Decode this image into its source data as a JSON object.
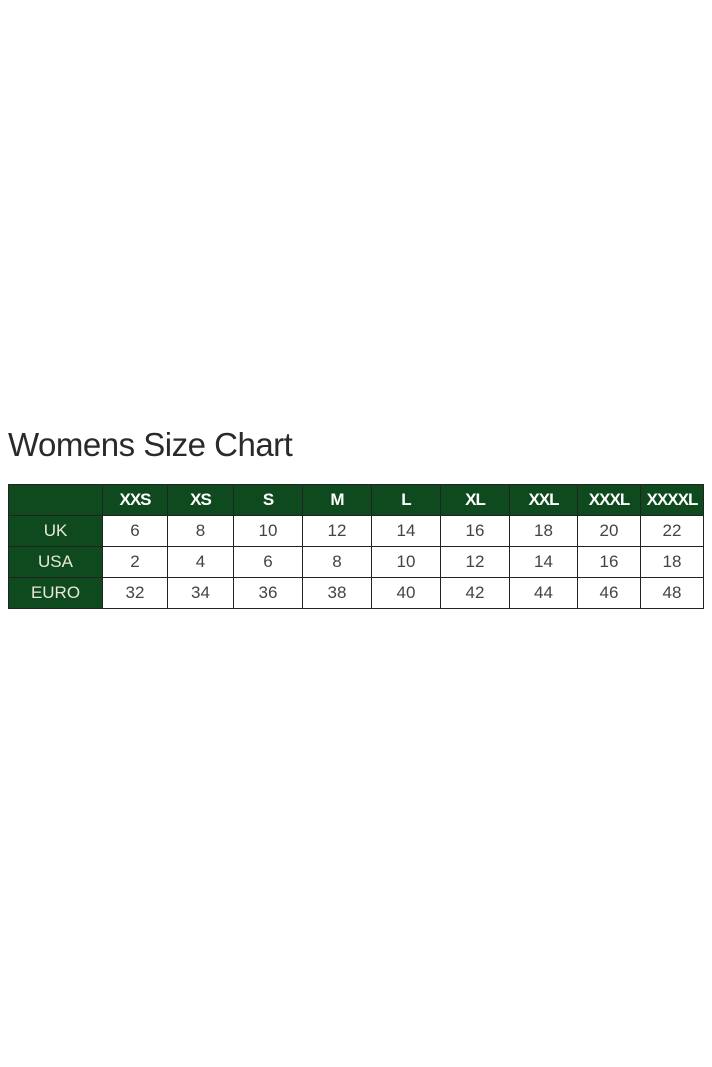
{
  "title": "Womens Size Chart",
  "colors": {
    "header_bg": "#0f4a1f",
    "header_text": "#ffffff"
  },
  "table": {
    "columns": [
      "",
      "XXS",
      "XS",
      "S",
      "M",
      "L",
      "XL",
      "XXL",
      "XXXL",
      "XXXXL"
    ],
    "rows": [
      {
        "label": "UK",
        "values": [
          "6",
          "8",
          "10",
          "12",
          "14",
          "16",
          "18",
          "20",
          "22"
        ]
      },
      {
        "label": "USA",
        "values": [
          "2",
          "4",
          "6",
          "8",
          "10",
          "12",
          "14",
          "16",
          "18"
        ]
      },
      {
        "label": "EURO",
        "values": [
          "32",
          "34",
          "36",
          "38",
          "40",
          "42",
          "44",
          "46",
          "48"
        ]
      }
    ]
  }
}
